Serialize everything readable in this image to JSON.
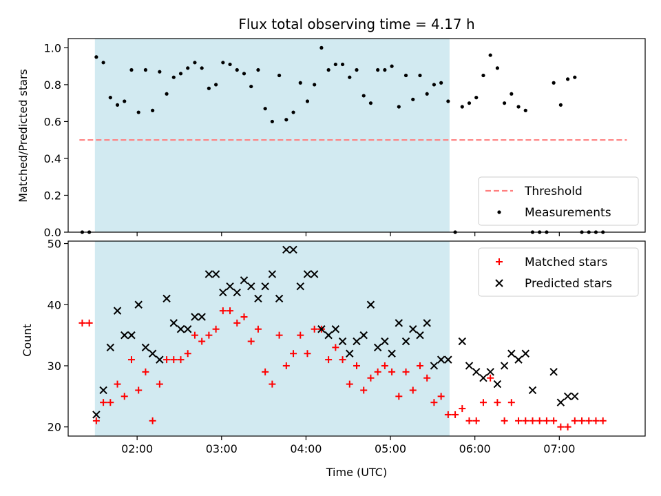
{
  "chart_data": [
    {
      "type": "scatter",
      "title": "Flux total observing time = 4.17 h",
      "xlabel": "",
      "ylabel": "Matched/Predicted stars",
      "x_ticks": [
        "02:00",
        "03:00",
        "04:00",
        "05:00",
        "06:00",
        "07:00"
      ],
      "x_range": [
        "01:11",
        "08:01"
      ],
      "ylim": [
        0.0,
        1.05
      ],
      "y_ticks": [
        "0.0",
        "0.2",
        "0.4",
        "0.6",
        "0.8",
        "1.0"
      ],
      "shaded_interval": [
        "01:30",
        "05:42"
      ],
      "shade_color": "#add8e6",
      "legend_position": "lower-right",
      "series": [
        {
          "name": "Threshold",
          "kind": "dashed-line",
          "color": "#ff7f7f",
          "x": [
            "01:19",
            "07:48"
          ],
          "y": [
            0.5,
            0.5
          ]
        },
        {
          "name": "Measurements",
          "kind": "dots",
          "color": "#000000",
          "x": [
            "01:21",
            "01:26",
            "01:31",
            "01:36",
            "01:41",
            "01:46",
            "01:51",
            "01:56",
            "02:01",
            "02:06",
            "02:11",
            "02:16",
            "02:21",
            "02:26",
            "02:31",
            "02:36",
            "02:41",
            "02:46",
            "02:51",
            "02:56",
            "03:01",
            "03:06",
            "03:11",
            "03:16",
            "03:21",
            "03:26",
            "03:31",
            "03:36",
            "03:41",
            "03:46",
            "03:51",
            "03:56",
            "04:01",
            "04:06",
            "04:11",
            "04:16",
            "04:21",
            "04:26",
            "04:31",
            "04:36",
            "04:41",
            "04:46",
            "04:51",
            "04:56",
            "05:01",
            "05:06",
            "05:11",
            "05:16",
            "05:21",
            "05:26",
            "05:31",
            "05:36",
            "05:41",
            "05:46",
            "05:51",
            "05:56",
            "06:01",
            "06:06",
            "06:11",
            "06:16",
            "06:21",
            "06:26",
            "06:31",
            "06:36",
            "06:41",
            "06:46",
            "06:51",
            "06:56",
            "07:01",
            "07:06",
            "07:11",
            "07:16",
            "07:21",
            "07:26",
            "07:31"
          ],
          "y": [
            0.0,
            0.0,
            0.95,
            0.92,
            0.73,
            0.69,
            0.71,
            0.88,
            0.65,
            0.88,
            0.66,
            0.87,
            0.75,
            0.84,
            0.86,
            0.89,
            0.92,
            0.89,
            0.78,
            0.8,
            0.92,
            0.91,
            0.88,
            0.86,
            0.79,
            0.88,
            0.67,
            0.6,
            0.85,
            0.61,
            0.65,
            0.81,
            0.71,
            0.8,
            1.0,
            0.88,
            0.91,
            0.91,
            0.84,
            0.88,
            0.74,
            0.7,
            0.88,
            0.88,
            0.9,
            0.68,
            0.85,
            0.72,
            0.85,
            0.75,
            0.8,
            0.81,
            0.71,
            0.0,
            0.68,
            0.7,
            0.73,
            0.85,
            0.96,
            0.89,
            0.7,
            0.75,
            0.68,
            0.66,
            0.0,
            0.0,
            0.0,
            0.81,
            0.69,
            0.83,
            0.84,
            0.0,
            0.0,
            0.0,
            0.0
          ]
        }
      ]
    },
    {
      "type": "scatter",
      "title": "",
      "xlabel": "Time (UTC)",
      "ylabel": "Count",
      "x_ticks": [
        "02:00",
        "03:00",
        "04:00",
        "05:00",
        "06:00",
        "07:00"
      ],
      "x_range": [
        "01:11",
        "08:01"
      ],
      "ylim": [
        18.5,
        50.4
      ],
      "y_ticks": [
        "20",
        "30",
        "40",
        "50"
      ],
      "shaded_interval": [
        "01:30",
        "05:42"
      ],
      "shade_color": "#add8e6",
      "legend_position": "upper-right",
      "series": [
        {
          "name": "Matched stars",
          "kind": "plus",
          "color": "#ff0000",
          "x": [
            "01:21",
            "01:26",
            "01:31",
            "01:36",
            "01:41",
            "01:46",
            "01:51",
            "01:56",
            "02:01",
            "02:06",
            "02:11",
            "02:16",
            "02:21",
            "02:26",
            "02:31",
            "02:36",
            "02:41",
            "02:46",
            "02:51",
            "02:56",
            "03:01",
            "03:06",
            "03:11",
            "03:16",
            "03:21",
            "03:26",
            "03:31",
            "03:36",
            "03:41",
            "03:46",
            "03:51",
            "03:56",
            "04:01",
            "04:06",
            "04:11",
            "04:16",
            "04:21",
            "04:26",
            "04:31",
            "04:36",
            "04:41",
            "04:46",
            "04:51",
            "04:56",
            "05:01",
            "05:06",
            "05:11",
            "05:16",
            "05:21",
            "05:26",
            "05:31",
            "05:36",
            "05:41",
            "05:46",
            "05:51",
            "05:56",
            "06:01",
            "06:06",
            "06:11",
            "06:16",
            "06:21",
            "06:26",
            "06:31",
            "06:36",
            "06:41",
            "06:46",
            "06:51",
            "06:56",
            "07:01",
            "07:06",
            "07:11",
            "07:16",
            "07:21",
            "07:26",
            "07:31"
          ],
          "y": [
            37,
            37,
            21,
            24,
            24,
            27,
            25,
            31,
            26,
            29,
            21,
            27,
            31,
            31,
            31,
            32,
            35,
            34,
            35,
            36,
            39,
            39,
            37,
            38,
            34,
            36,
            29,
            27,
            35,
            30,
            32,
            35,
            32,
            36,
            36,
            31,
            33,
            31,
            27,
            30,
            26,
            28,
            29,
            30,
            29,
            25,
            29,
            26,
            30,
            28,
            24,
            25,
            22,
            22,
            23,
            21,
            21,
            24,
            28,
            24,
            21,
            24,
            21,
            21,
            21,
            21,
            21,
            21,
            20,
            20,
            21,
            21,
            21,
            21,
            21
          ]
        },
        {
          "name": "Predicted stars",
          "kind": "x",
          "color": "#000000",
          "x": [
            "01:31",
            "01:36",
            "01:41",
            "01:46",
            "01:51",
            "01:56",
            "02:01",
            "02:06",
            "02:11",
            "02:16",
            "02:21",
            "02:26",
            "02:31",
            "02:36",
            "02:41",
            "02:46",
            "02:51",
            "02:56",
            "03:01",
            "03:06",
            "03:11",
            "03:16",
            "03:21",
            "03:26",
            "03:31",
            "03:36",
            "03:41",
            "03:46",
            "03:51",
            "03:56",
            "04:01",
            "04:06",
            "04:11",
            "04:16",
            "04:21",
            "04:26",
            "04:31",
            "04:36",
            "04:41",
            "04:46",
            "04:51",
            "04:56",
            "05:01",
            "05:06",
            "05:11",
            "05:16",
            "05:21",
            "05:26",
            "05:31",
            "05:36",
            "05:41",
            "05:51",
            "05:56",
            "06:01",
            "06:06",
            "06:11",
            "06:16",
            "06:21",
            "06:26",
            "06:31",
            "06:36",
            "06:41",
            "06:56",
            "07:01",
            "07:06",
            "07:11"
          ],
          "y": [
            22,
            26,
            33,
            39,
            35,
            35,
            40,
            33,
            32,
            31,
            41,
            37,
            36,
            36,
            38,
            38,
            45,
            45,
            42,
            43,
            42,
            44,
            43,
            41,
            43,
            45,
            41,
            49,
            49,
            43,
            45,
            45,
            36,
            35,
            36,
            34,
            32,
            34,
            35,
            40,
            33,
            34,
            32,
            37,
            34,
            36,
            35,
            37,
            30,
            31,
            31,
            34,
            30,
            29,
            28,
            29,
            27,
            30,
            32,
            31,
            32,
            26,
            29,
            24,
            25,
            25
          ]
        }
      ]
    }
  ]
}
